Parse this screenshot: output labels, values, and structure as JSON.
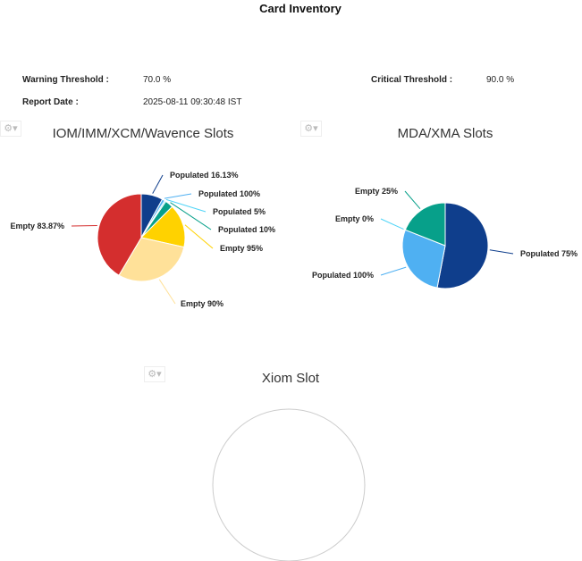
{
  "header": {
    "title": "Card Inventory"
  },
  "info": {
    "warning_label": "Warning Threshold :",
    "warning_value": "70.0 %",
    "critical_label": "Critical Threshold :",
    "critical_value": "90.0 %",
    "report_label": "Report Date :",
    "report_value": "2025-08-11 09:30:48 IST"
  },
  "chart_data": [
    {
      "type": "pie",
      "title": "IOM/IMM/XCM/Wavence Slots",
      "slices": [
        {
          "label": "Populated 16.13%",
          "share": 8,
          "color": "#0f3e8c"
        },
        {
          "label": "Populated 100%",
          "share": 1,
          "color": "#4fb0f2"
        },
        {
          "label": "Populated 5%",
          "share": 0.5,
          "color": "#4fd4f7"
        },
        {
          "label": "Populated 10%",
          "share": 3,
          "color": "#07a08a"
        },
        {
          "label": "Empty 95%",
          "share": 16,
          "color": "#ffd200"
        },
        {
          "label": "Empty 90%",
          "share": 30,
          "color": "#ffe199"
        },
        {
          "label": "Empty 83.87%",
          "share": 41.5,
          "color": "#d42e2e"
        }
      ]
    },
    {
      "type": "pie",
      "title": "MDA/XMA Slots",
      "slices": [
        {
          "label": "Populated 75%",
          "share": 53,
          "color": "#0f3e8c"
        },
        {
          "label": "Populated 100%",
          "share": 28,
          "color": "#4fb0f2"
        },
        {
          "label": "Empty 0%",
          "share": 0,
          "color": "#4fd4f7"
        },
        {
          "label": "Empty 25%",
          "share": 19,
          "color": "#07a08a"
        }
      ]
    },
    {
      "type": "pie",
      "title": "Xiom Slot",
      "slices": []
    }
  ],
  "icons": {
    "chart_menu": "gear-dropdown-icon"
  }
}
